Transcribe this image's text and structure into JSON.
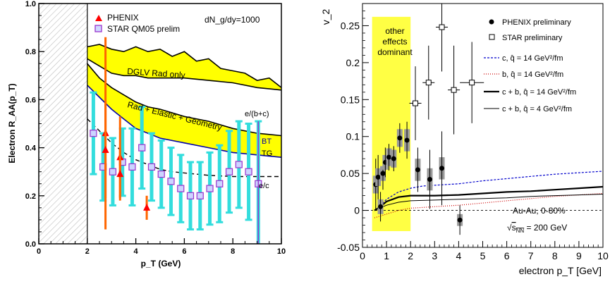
{
  "chart_data": [
    {
      "type": "scatter",
      "title": "",
      "xlabel": "p_T (GeV)",
      "ylabel": "Electron R_AA(p_T)",
      "xlim": [
        0,
        10
      ],
      "ylim": [
        0,
        1
      ],
      "xticks": [
        0,
        2,
        4,
        6,
        8,
        10
      ],
      "yticks": [
        "0.0",
        "0.2",
        "0.4",
        "0.6",
        "0.8",
        "1.0"
      ],
      "excluded_region": [
        0,
        2
      ],
      "legend_position": "top-center",
      "legend": [
        {
          "label": "PHENIX",
          "marker": "triangle",
          "color": "#ff0000"
        },
        {
          "label": "STAR QM05 prelim",
          "marker": "open-square",
          "color": "#9933cc"
        }
      ],
      "annotations": {
        "dndy": "dN_g/dy=1000",
        "dglv": "DGLV Rad only",
        "rad_elastic": "Rad + Elastic + Geometry",
        "eb_c": "e/(b+c)",
        "bt": "BT",
        "tg": "TG",
        "ec": "e/c"
      },
      "bands": [
        {
          "name": "DGLV Rad only",
          "color": "#ffff00",
          "upper": [
            [
              2,
              0.82
            ],
            [
              2.5,
              0.83
            ],
            [
              3,
              0.81
            ],
            [
              3.5,
              0.8
            ],
            [
              4,
              0.82
            ],
            [
              4.5,
              0.8
            ],
            [
              5,
              0.81
            ],
            [
              5.5,
              0.78
            ],
            [
              6,
              0.8
            ],
            [
              6.5,
              0.76
            ],
            [
              7,
              0.77
            ],
            [
              7.5,
              0.73
            ],
            [
              8,
              0.72
            ],
            [
              8.5,
              0.71
            ],
            [
              9,
              0.68
            ],
            [
              9.5,
              0.69
            ],
            [
              10,
              0.65
            ]
          ],
          "lower": [
            [
              2,
              0.77
            ],
            [
              2.5,
              0.74
            ],
            [
              3,
              0.71
            ],
            [
              3.5,
              0.7
            ],
            [
              4,
              0.7
            ],
            [
              4.5,
              0.69
            ],
            [
              5,
              0.69
            ],
            [
              6,
              0.69
            ],
            [
              7,
              0.68
            ],
            [
              8,
              0.67
            ],
            [
              9,
              0.65
            ],
            [
              10,
              0.64
            ]
          ]
        },
        {
          "name": "Rad + Elastic + Geometry",
          "color": "#ffff00",
          "upper": [
            [
              2,
              0.75
            ],
            [
              2.5,
              0.69
            ],
            [
              3,
              0.65
            ],
            [
              3.5,
              0.62
            ],
            [
              4,
              0.59
            ],
            [
              4.5,
              0.57
            ],
            [
              5,
              0.56
            ],
            [
              6,
              0.53
            ],
            [
              7,
              0.51
            ],
            [
              8,
              0.48
            ],
            [
              9,
              0.46
            ],
            [
              10,
              0.45
            ]
          ],
          "lower": [
            [
              2,
              0.66
            ],
            [
              2.5,
              0.61
            ],
            [
              3,
              0.56
            ],
            [
              3.5,
              0.52
            ],
            [
              4,
              0.48
            ],
            [
              4.5,
              0.46
            ],
            [
              5,
              0.44
            ],
            [
              6,
              0.42
            ],
            [
              7,
              0.4
            ],
            [
              8,
              0.38
            ],
            [
              9,
              0.37
            ],
            [
              10,
              0.36
            ]
          ]
        }
      ],
      "curves": [
        {
          "name": "e/c",
          "style": "dashed",
          "color": "#000000",
          "points": [
            [
              2,
              0.52
            ],
            [
              2.5,
              0.47
            ],
            [
              3,
              0.42
            ],
            [
              3.5,
              0.38
            ],
            [
              4,
              0.35
            ],
            [
              4.5,
              0.33
            ],
            [
              5,
              0.31
            ],
            [
              5.5,
              0.3
            ],
            [
              6,
              0.295
            ],
            [
              7,
              0.285
            ],
            [
              8,
              0.28
            ],
            [
              9,
              0.28
            ],
            [
              10,
              0.28
            ]
          ]
        }
      ],
      "series": [
        {
          "name": "PHENIX",
          "marker": "triangle",
          "color": "#ff0000",
          "points": [
            {
              "x": 2.75,
              "y": 0.46,
              "err": 0.4
            },
            {
              "x": 2.75,
              "y": 0.39,
              "err": 0.2
            },
            {
              "x": 3.35,
              "y": 0.36,
              "err": 0.17
            },
            {
              "x": 3.35,
              "y": 0.29,
              "err": 0.11
            },
            {
              "x": 4.45,
              "y": 0.15,
              "err": 0.05
            }
          ]
        },
        {
          "name": "STAR QM05 prelim",
          "marker": "open-square",
          "color": "#9933cc",
          "points": [
            {
              "x": 2.25,
              "y": 0.46,
              "err": 0.17
            },
            {
              "x": 2.65,
              "y": 0.32,
              "err": 0.14
            },
            {
              "x": 3.05,
              "y": 0.3,
              "err": 0.14
            },
            {
              "x": 3.45,
              "y": 0.34,
              "err": 0.14
            },
            {
              "x": 3.85,
              "y": 0.32,
              "err": 0.16
            },
            {
              "x": 4.25,
              "y": 0.4,
              "err": 0.17
            },
            {
              "x": 4.65,
              "y": 0.32,
              "err": 0.14
            },
            {
              "x": 5.05,
              "y": 0.29,
              "err": 0.14
            },
            {
              "x": 5.45,
              "y": 0.26,
              "err": 0.14
            },
            {
              "x": 5.85,
              "y": 0.23,
              "err": 0.14
            },
            {
              "x": 6.25,
              "y": 0.2,
              "err": 0.14
            },
            {
              "x": 6.65,
              "y": 0.2,
              "err": 0.14
            },
            {
              "x": 7.05,
              "y": 0.23,
              "err": 0.15
            },
            {
              "x": 7.45,
              "y": 0.25,
              "err": 0.16
            },
            {
              "x": 7.85,
              "y": 0.3,
              "err": 0.17
            },
            {
              "x": 8.25,
              "y": 0.33,
              "err": 0.18
            },
            {
              "x": 8.65,
              "y": 0.3,
              "err": 0.2
            },
            {
              "x": 9.05,
              "y": 0.25,
              "err": 0.26
            }
          ]
        }
      ]
    },
    {
      "type": "scatter",
      "title": "",
      "xlabel": "electron p_T [GeV]",
      "ylabel": "v_2",
      "xlim": [
        0,
        10
      ],
      "ylim": [
        -0.05,
        0.28
      ],
      "xticks": [
        "0",
        "1",
        "2",
        "3",
        "4",
        "5",
        "6",
        "7",
        "8",
        "9",
        "10"
      ],
      "yticks": [
        "-0.05",
        "0",
        "0.05",
        "0.1",
        "0.15",
        "0.2",
        "0.25"
      ],
      "legend_position": "top-right",
      "region": {
        "x": [
          0.4,
          2.0
        ],
        "color": "#ffff44",
        "label": [
          "other",
          "effects",
          "dominant"
        ]
      },
      "annotations": {
        "collision": "Au-Au, 0-80%",
        "energy_prefix": "√",
        "energy_sub": "s",
        "energy_subscript": "NN",
        "energy_suffix": " = 200 GeV"
      },
      "legend": [
        {
          "label": "PHENIX preliminary",
          "marker": "filled-circle"
        },
        {
          "label": "STAR preliminary",
          "marker": "open-square"
        },
        {
          "label": "c, q̂ = 14 GeV²/fm",
          "line": "dashed",
          "color": "#0000cc"
        },
        {
          "label": "b, q̂ = 14 GeV²/fm",
          "line": "dotted",
          "color": "#cc0000"
        },
        {
          "label": "c + b, q̂ = 14 GeV²/fm",
          "line": "solid-thick",
          "color": "#000000"
        },
        {
          "label": "c + b, q̂ = 4 GeV²/fm",
          "line": "solid-thin",
          "color": "#000000"
        }
      ],
      "curves": [
        {
          "name": "c, q̂ = 14 GeV²/fm",
          "style": "dashed",
          "color": "#0000cc",
          "points": [
            [
              0.5,
              0.0
            ],
            [
              0.7,
              0.005
            ],
            [
              1,
              0.015
            ],
            [
              1.5,
              0.025
            ],
            [
              2,
              0.03
            ],
            [
              2.5,
              0.033
            ],
            [
              3,
              0.034
            ],
            [
              4,
              0.036
            ],
            [
              5,
              0.04
            ],
            [
              6,
              0.043
            ],
            [
              7,
              0.046
            ],
            [
              8,
              0.049
            ],
            [
              9,
              0.051
            ],
            [
              10,
              0.053
            ]
          ]
        },
        {
          "name": "b, q̂ = 14 GeV²/fm",
          "style": "dotted",
          "color": "#cc0000",
          "points": [
            [
              0.5,
              -0.01
            ],
            [
              1,
              -0.005
            ],
            [
              1.5,
              0.0
            ],
            [
              2,
              0.003
            ],
            [
              3,
              0.005
            ],
            [
              4,
              0.007
            ],
            [
              5,
              0.01
            ],
            [
              6,
              0.013
            ],
            [
              7,
              0.016
            ],
            [
              8,
              0.019
            ],
            [
              9,
              0.021
            ],
            [
              10,
              0.023
            ]
          ]
        },
        {
          "name": "c + b, q̂ = 14 GeV²/fm",
          "style": "solid-thick",
          "color": "#000000",
          "points": [
            [
              0.5,
              0.0
            ],
            [
              0.7,
              0.004
            ],
            [
              1,
              0.012
            ],
            [
              1.5,
              0.018
            ],
            [
              2,
              0.02
            ],
            [
              3,
              0.02
            ],
            [
              4,
              0.021
            ],
            [
              5,
              0.023
            ],
            [
              6,
              0.025
            ],
            [
              7,
              0.026
            ],
            [
              8,
              0.028
            ],
            [
              9,
              0.03
            ],
            [
              10,
              0.032
            ]
          ]
        },
        {
          "name": "c + b, q̂ = 4 GeV²/fm",
          "style": "solid-thin",
          "color": "#000000",
          "points": [
            [
              0.5,
              0.0
            ],
            [
              0.7,
              0.003
            ],
            [
              1,
              0.007
            ],
            [
              1.5,
              0.011
            ],
            [
              2,
              0.013
            ],
            [
              3,
              0.014
            ],
            [
              4,
              0.015
            ],
            [
              5,
              0.016
            ],
            [
              6,
              0.017
            ],
            [
              7,
              0.019
            ],
            [
              8,
              0.02
            ],
            [
              9,
              0.021
            ],
            [
              10,
              0.022
            ]
          ]
        }
      ],
      "series": [
        {
          "name": "PHENIX preliminary",
          "marker": "filled-circle",
          "points": [
            {
              "x": 0.55,
              "y": 0.035,
              "err": 0.035,
              "sys": 0.012
            },
            {
              "x": 0.65,
              "y": 0.045,
              "err": 0.03,
              "sys": 0.012
            },
            {
              "x": 0.75,
              "y": 0.005,
              "err": 0.02,
              "sys": 0.01
            },
            {
              "x": 0.85,
              "y": 0.05,
              "err": 0.022,
              "sys": 0.01
            },
            {
              "x": 0.95,
              "y": 0.065,
              "err": 0.02,
              "sys": 0.01
            },
            {
              "x": 1.1,
              "y": 0.072,
              "err": 0.018,
              "sys": 0.012
            },
            {
              "x": 1.3,
              "y": 0.07,
              "err": 0.017,
              "sys": 0.012
            },
            {
              "x": 1.55,
              "y": 0.098,
              "err": 0.02,
              "sys": 0.012
            },
            {
              "x": 1.85,
              "y": 0.095,
              "err": 0.025,
              "sys": 0.015
            },
            {
              "x": 2.3,
              "y": 0.055,
              "err": 0.03,
              "sys": 0.015
            },
            {
              "x": 2.8,
              "y": 0.042,
              "err": 0.04,
              "sys": 0.015
            },
            {
              "x": 3.3,
              "y": 0.057,
              "err": 0.05,
              "sys": 0.015
            },
            {
              "x": 4.05,
              "y": -0.013,
              "err": 0.02,
              "sys": 0.008
            }
          ]
        },
        {
          "name": "STAR preliminary",
          "marker": "open-square",
          "points": [
            {
              "x": 2.2,
              "y": 0.145,
              "xerr": 0.25,
              "err": 0.05
            },
            {
              "x": 2.75,
              "y": 0.173,
              "xerr": 0.25,
              "err": 0.05
            },
            {
              "x": 3.3,
              "y": 0.248,
              "xerr": 0.25,
              "err": 0.06
            },
            {
              "x": 3.8,
              "y": 0.163,
              "xerr": 0.25,
              "err": 0.06
            },
            {
              "x": 4.55,
              "y": 0.173,
              "xerr": 0.5,
              "err": 0.055
            }
          ]
        }
      ]
    }
  ]
}
